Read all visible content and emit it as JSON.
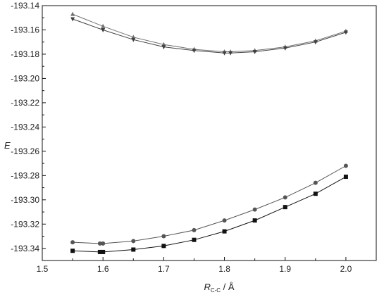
{
  "chart_data": {
    "type": "line",
    "xlabel": {
      "symbol": "R",
      "subscript": "C-C",
      "unit": " / Å"
    },
    "ylabel": "E",
    "xlim": [
      1.5,
      2.05
    ],
    "ylim": [
      -193.35,
      -193.14
    ],
    "xticks": [
      "1.5",
      "1.6",
      "1.7",
      "1.8",
      "1.9",
      "2.0"
    ],
    "xtick_values": [
      1.5,
      1.6,
      1.7,
      1.8,
      1.9,
      2.0
    ],
    "yticks": [
      "-193.14",
      "-193.16",
      "-193.18",
      "-193.20",
      "-193.22",
      "-193.24",
      "-193.26",
      "-193.28",
      "-193.30",
      "-193.32",
      "-193.34"
    ],
    "ytick_values": [
      -193.14,
      -193.16,
      -193.18,
      -193.2,
      -193.22,
      -193.24,
      -193.26,
      -193.28,
      -193.3,
      -193.32,
      -193.34
    ],
    "grid": false,
    "series": [
      {
        "marker": "triangle-up",
        "color": "#707070",
        "x": [
          1.55,
          1.6,
          1.65,
          1.7,
          1.75,
          1.8,
          1.81,
          1.85,
          1.9,
          1.95,
          2.0
        ],
        "y": [
          -193.147,
          -193.157,
          -193.166,
          -193.172,
          -193.176,
          -193.178,
          -193.178,
          -193.177,
          -193.174,
          -193.169,
          -193.161
        ]
      },
      {
        "marker": "triangle-down",
        "color": "#404040",
        "x": [
          1.55,
          1.6,
          1.65,
          1.7,
          1.75,
          1.8,
          1.81,
          1.85,
          1.9,
          1.95,
          2.0
        ],
        "y": [
          -193.151,
          -193.16,
          -193.168,
          -193.174,
          -193.177,
          -193.179,
          -193.179,
          -193.178,
          -193.175,
          -193.17,
          -193.162
        ]
      },
      {
        "marker": "circle",
        "color": "#555555",
        "x": [
          1.55,
          1.595,
          1.6,
          1.65,
          1.7,
          1.75,
          1.8,
          1.85,
          1.9,
          1.95,
          2.0
        ],
        "y": [
          -193.335,
          -193.336,
          -193.336,
          -193.334,
          -193.33,
          -193.325,
          -193.317,
          -193.308,
          -193.298,
          -193.286,
          -193.272
        ]
      },
      {
        "marker": "square",
        "color": "#111111",
        "x": [
          1.55,
          1.595,
          1.6,
          1.65,
          1.7,
          1.75,
          1.8,
          1.85,
          1.9,
          1.95,
          2.0
        ],
        "y": [
          -193.342,
          -193.343,
          -193.343,
          -193.341,
          -193.338,
          -193.333,
          -193.326,
          -193.317,
          -193.306,
          -193.295,
          -193.281
        ]
      }
    ]
  }
}
